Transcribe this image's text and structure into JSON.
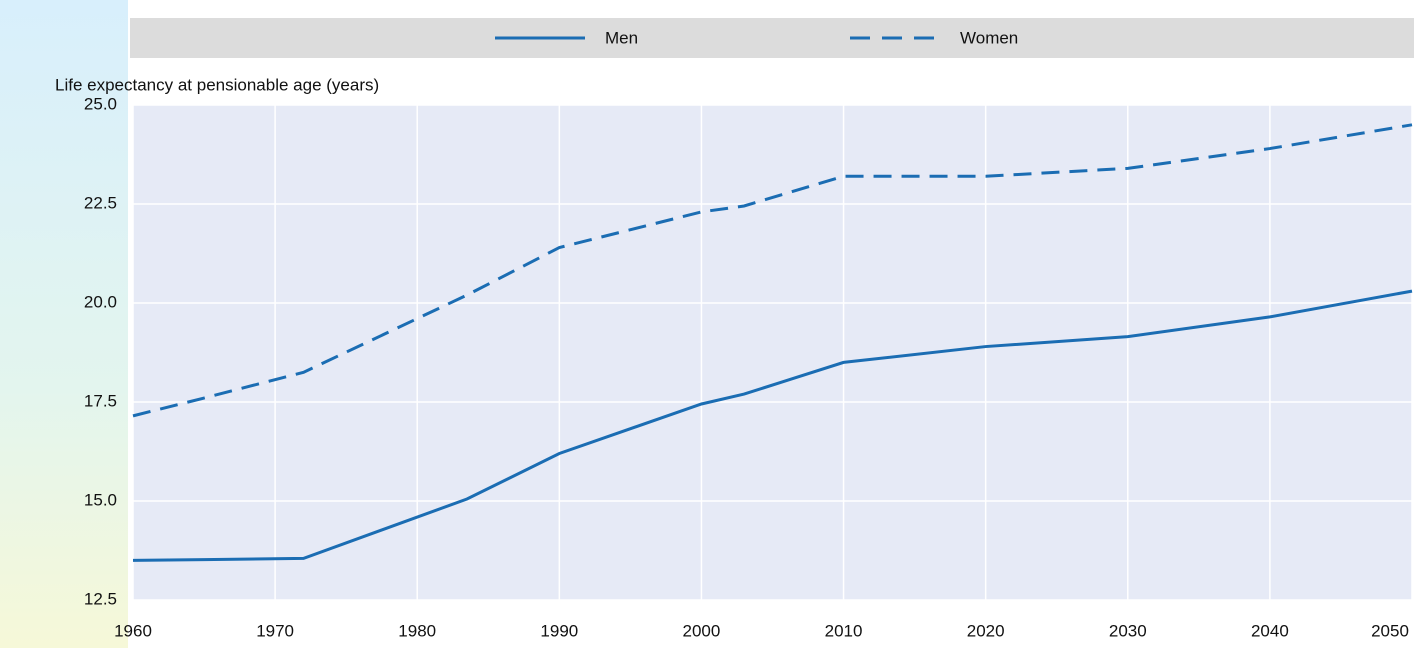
{
  "chart_data": {
    "type": "line",
    "y_label": "Life expectancy at pensionable age (years)",
    "x": [
      1960,
      1965,
      1972,
      1983.5,
      1990,
      2000,
      2003,
      2010,
      2020,
      2030,
      2040,
      2050
    ],
    "series": [
      {
        "name": "Men",
        "color": "#1b6db3",
        "dash": "solid",
        "values": [
          13.5,
          13.52,
          13.55,
          15.05,
          16.2,
          17.45,
          17.7,
          18.5,
          18.9,
          19.15,
          19.65,
          20.3
        ]
      },
      {
        "name": "Women",
        "color": "#1b6db3",
        "dash": "dashed",
        "values": [
          17.15,
          17.6,
          18.25,
          20.2,
          21.4,
          22.3,
          22.45,
          23.2,
          23.2,
          23.4,
          23.9,
          24.5
        ]
      }
    ],
    "xlim": [
      1960,
      2050
    ],
    "xticks": [
      1960,
      1970,
      1980,
      1990,
      2000,
      2010,
      2020,
      2030,
      2040,
      2050
    ],
    "ylim": [
      12.5,
      25
    ],
    "yticks": [
      {
        "value": 12.5,
        "label": "12.5"
      },
      {
        "value": 15,
        "label": "15.0"
      },
      17.5,
      {
        "value": 20,
        "label": "20.0"
      },
      22.5,
      {
        "value": 25,
        "label": "25.0"
      }
    ],
    "grid": true,
    "legend": "top"
  }
}
